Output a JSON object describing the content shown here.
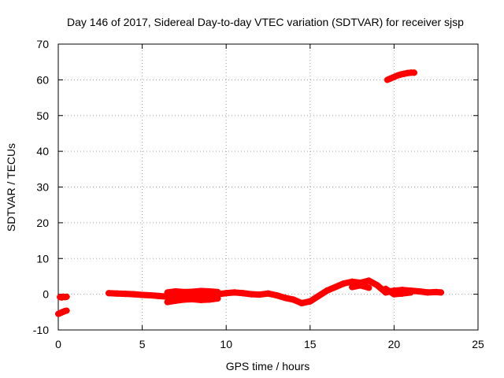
{
  "chart_data": {
    "type": "scatter",
    "title": "Day 146 of 2017, Sidereal Day-to-day VTEC variation (SDTVAR) for receiver sjsp",
    "xlabel": "GPS time / hours",
    "ylabel": "SDTVAR / TECUs",
    "xlim": [
      0,
      25
    ],
    "ylim": [
      -10,
      70
    ],
    "xticks": [
      0,
      5,
      10,
      15,
      20,
      25
    ],
    "yticks": [
      -10,
      0,
      10,
      20,
      30,
      40,
      50,
      60,
      70
    ],
    "xtick_labels": [
      "0",
      "5",
      "10",
      "15",
      "20",
      "25"
    ],
    "ytick_labels": [
      "-10",
      "0",
      "10",
      "20",
      "30",
      "40",
      "50",
      "60",
      "70"
    ],
    "grid": true,
    "marker": "plus",
    "color": "#ff0000",
    "series": [
      {
        "name": "SDTVAR",
        "x": [
          0.0,
          0.1,
          0.2,
          0.3,
          0.4,
          0.5,
          0.1,
          0.2,
          0.3,
          0.4,
          0.5,
          3.0,
          3.5,
          4.0,
          4.5,
          5.0,
          5.5,
          6.0,
          6.5,
          7.0,
          7.5,
          8.0,
          8.5,
          9.0,
          9.5,
          10.0,
          10.5,
          11.0,
          11.5,
          12.0,
          12.5,
          13.0,
          13.5,
          14.0,
          14.5,
          15.0,
          15.5,
          16.0,
          16.5,
          17.0,
          17.5,
          18.0,
          18.5,
          19.0,
          19.5,
          20.0,
          20.5,
          21.0,
          21.5,
          22.0,
          22.5,
          22.8,
          6.5,
          7.0,
          7.5,
          8.0,
          8.5,
          9.0,
          9.5,
          6.5,
          7.0,
          7.5,
          8.0,
          8.5,
          9.0,
          9.5,
          17.5,
          18.0,
          18.5,
          19.5,
          20.0,
          20.5,
          21.0,
          19.6,
          19.8,
          20.0,
          20.2,
          20.4,
          20.6,
          20.8,
          21.0,
          21.2
        ],
        "y": [
          -5.5,
          -5.3,
          -5.1,
          -4.9,
          -4.7,
          -4.6,
          -0.8,
          -0.9,
          -0.7,
          -0.8,
          -0.7,
          0.3,
          0.2,
          0.1,
          0.0,
          -0.2,
          -0.3,
          -0.5,
          -0.7,
          -0.6,
          -0.5,
          -0.7,
          -0.6,
          -0.3,
          0.0,
          0.3,
          0.5,
          0.3,
          0.0,
          -0.1,
          0.2,
          -0.3,
          -1.0,
          -1.5,
          -2.5,
          -2.0,
          -0.5,
          1.0,
          2.0,
          3.0,
          3.5,
          3.2,
          3.8,
          2.5,
          0.5,
          1.0,
          1.2,
          1.0,
          0.8,
          0.5,
          0.6,
          0.5,
          -2.2,
          -1.8,
          -1.5,
          -1.4,
          -1.6,
          -1.5,
          -1.2,
          0.5,
          0.8,
          0.6,
          0.7,
          0.9,
          0.8,
          0.6,
          2.0,
          2.5,
          1.8,
          1.5,
          0.0,
          0.2,
          0.5,
          60.0,
          60.4,
          60.8,
          61.2,
          61.5,
          61.7,
          61.9,
          62.0,
          62.0
        ]
      }
    ]
  }
}
